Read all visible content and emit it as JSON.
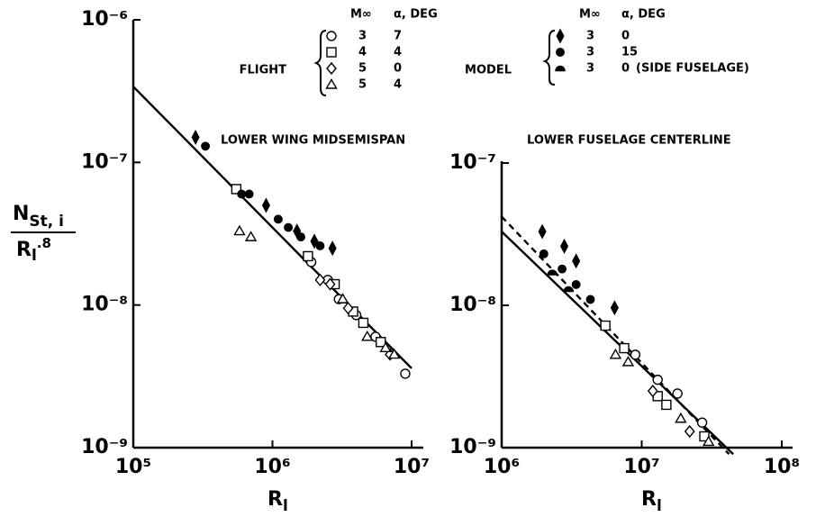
{
  "legend": {
    "headers": [
      "M∞",
      "α, DEG"
    ],
    "groups": [
      {
        "label": "FLIGHT",
        "entries": [
          {
            "mach": 3,
            "alpha": 7,
            "marker": "circle"
          },
          {
            "mach": 4,
            "alpha": 4,
            "marker": "square"
          },
          {
            "mach": 5,
            "alpha": 0,
            "marker": "diamond"
          },
          {
            "mach": 5,
            "alpha": 4,
            "marker": "triangle"
          }
        ]
      },
      {
        "label": "MODEL",
        "entries": [
          {
            "mach": 3,
            "alpha": 0,
            "marker": "diamond-filled"
          },
          {
            "mach": 3,
            "alpha": 15,
            "marker": "circle-filled"
          },
          {
            "mach": 3,
            "alpha": 0,
            "marker": "half",
            "note": "(SIDE FUSELAGE)"
          }
        ]
      }
    ]
  },
  "ylabel": {
    "num": "N",
    "num_sub": "St, i",
    "den": "R",
    "den_sub": "l",
    "den_sup": ".8"
  },
  "chart_data": [
    {
      "type": "scatter",
      "annotation": "LOWER WING MIDSEMISPAN",
      "xlabel": {
        "text": "R",
        "sub": "l"
      },
      "xscale": "log",
      "yscale": "log",
      "xlim": [
        100000,
        10000000
      ],
      "ylim": [
        1e-09,
        1e-06
      ],
      "xticks": [
        {
          "value": 100000,
          "label": "10⁵"
        },
        {
          "value": 1000000,
          "label": "10⁶"
        },
        {
          "value": 10000000,
          "label": "10⁷"
        }
      ],
      "yticks": [
        {
          "value": 1e-09,
          "label": "10⁻⁹"
        },
        {
          "value": 1e-08,
          "label": "10⁻⁸"
        },
        {
          "value": 1e-07,
          "label": "10⁻⁷"
        },
        {
          "value": 1e-06,
          "label": "10⁻⁶"
        }
      ],
      "lines": [
        {
          "style": "solid",
          "x": [
            100000,
            10000000
          ],
          "y": [
            3.4e-07,
            3.6e-09
          ]
        }
      ],
      "series": [
        {
          "marker": "circle",
          "x": [
            1900000,
            2500000,
            3000000,
            4000000,
            5500000,
            9000000
          ],
          "y": [
            2e-08,
            1.5e-08,
            1.1e-08,
            8.5e-09,
            6e-09,
            3.3e-09
          ]
        },
        {
          "marker": "square",
          "x": [
            550000,
            1800000,
            2800000,
            3800000,
            4500000,
            6000000
          ],
          "y": [
            6.5e-08,
            2.2e-08,
            1.4e-08,
            9e-09,
            7.5e-09,
            5.5e-09
          ]
        },
        {
          "marker": "diamond",
          "x": [
            2200000,
            2600000,
            3500000,
            7000000
          ],
          "y": [
            1.5e-08,
            1.4e-08,
            9.5e-09,
            4.5e-09
          ]
        },
        {
          "marker": "triangle",
          "x": [
            580000,
            700000,
            3200000,
            4800000,
            6500000,
            7500000
          ],
          "y": [
            3.3e-08,
            3e-08,
            1.1e-08,
            6e-09,
            5e-09,
            4.5e-09
          ]
        },
        {
          "marker": "diamond-filled",
          "x": [
            280000,
            900000,
            1500000,
            2000000,
            2700000
          ],
          "y": [
            1.5e-07,
            5e-08,
            3.3e-08,
            2.8e-08,
            2.5e-08
          ]
        },
        {
          "marker": "circle-filled",
          "x": [
            330000,
            600000,
            680000,
            1100000,
            1300000,
            1600000,
            2200000
          ],
          "y": [
            1.3e-07,
            6e-08,
            6e-08,
            4e-08,
            3.5e-08,
            3e-08,
            2.6e-08
          ]
        }
      ]
    },
    {
      "type": "scatter",
      "annotation": "LOWER FUSELAGE CENTERLINE",
      "xlabel": {
        "text": "R",
        "sub": "l"
      },
      "xscale": "log",
      "yscale": "log",
      "xlim": [
        1000000,
        100000000
      ],
      "ylim": [
        1e-09,
        1e-07
      ],
      "xticks": [
        {
          "value": 1000000,
          "label": "10⁶"
        },
        {
          "value": 10000000,
          "label": "10⁷"
        },
        {
          "value": 100000000,
          "label": "10⁸"
        }
      ],
      "yticks": [
        {
          "value": 1e-09,
          "label": "10⁻⁹"
        },
        {
          "value": 1e-08,
          "label": "10⁻⁸"
        },
        {
          "value": 1e-07,
          "label": "10⁻⁷"
        }
      ],
      "lines": [
        {
          "style": "solid",
          "x": [
            1000000,
            45000000
          ],
          "y": [
            3.3e-08,
            9e-10
          ]
        },
        {
          "style": "dashed",
          "x": [
            1000000,
            42000000
          ],
          "y": [
            4.2e-08,
            9e-10
          ]
        }
      ],
      "series": [
        {
          "marker": "circle",
          "x": [
            9000000,
            13000000,
            18000000,
            27000000
          ],
          "y": [
            4.5e-09,
            3e-09,
            2.4e-09,
            1.5e-09
          ]
        },
        {
          "marker": "square",
          "x": [
            5500000,
            7500000,
            13000000,
            15000000,
            28000000
          ],
          "y": [
            7.2e-09,
            5e-09,
            2.3e-09,
            2e-09,
            1.2e-09
          ]
        },
        {
          "marker": "diamond",
          "x": [
            12000000,
            22000000
          ],
          "y": [
            2.5e-09,
            1.3e-09
          ]
        },
        {
          "marker": "triangle",
          "x": [
            6500000,
            8000000,
            19000000,
            30000000
          ],
          "y": [
            4.5e-09,
            4e-09,
            1.6e-09,
            1.1e-09
          ]
        },
        {
          "marker": "diamond-filled",
          "x": [
            1950000,
            2800000,
            3400000,
            6400000
          ],
          "y": [
            3.3e-08,
            2.6e-08,
            2.05e-08,
            9.6e-09
          ]
        },
        {
          "marker": "circle-filled",
          "x": [
            2000000,
            2700000,
            3400000,
            4300000
          ],
          "y": [
            2.3e-08,
            1.8e-08,
            1.4e-08,
            1.1e-08
          ]
        },
        {
          "marker": "half",
          "x": [
            2300000,
            3000000
          ],
          "y": [
            1.7e-08,
            1.3e-08
          ]
        }
      ]
    }
  ]
}
